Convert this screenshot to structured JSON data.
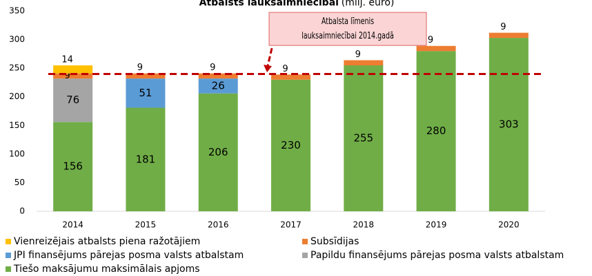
{
  "chart_data": {
    "type": "stacked_bar",
    "title": "Atbalsts lauksaimniecībai",
    "subtitle": "(milj. euro)",
    "categories": [
      "2014",
      "2015",
      "2016",
      "2017",
      "2018",
      "2019",
      "2020"
    ],
    "series": [
      {
        "name": "Tiešo maksājumu maksimālais apjoms",
        "color": "#70ad47",
        "values": [
          156,
          181,
          206,
          230,
          255,
          280,
          303
        ]
      },
      {
        "name": "Papildu finansējums pārejas posma valsts atbalstam",
        "color": "#a5a5a5",
        "values": [
          76,
          null,
          null,
          null,
          null,
          null,
          null
        ]
      },
      {
        "name": "JPI finansējums pārejas posma valsts atbalstam",
        "color": "#5b9bd5",
        "values": [
          null,
          51,
          26,
          null,
          null,
          null,
          null
        ]
      },
      {
        "name": "Subsīdijas",
        "color": "#ed7d31",
        "values": [
          9,
          9,
          9,
          9,
          9,
          9,
          9
        ]
      },
      {
        "name": "Vienreizējais atbalsts piena ražotājiem",
        "color": "#ffc000",
        "values": [
          14,
          null,
          null,
          null,
          null,
          null,
          null
        ]
      }
    ],
    "legend_order": [
      4,
      3,
      2,
      1,
      0
    ],
    "reference_line": {
      "value": 240,
      "color": "#c00000"
    },
    "annotation": "Atbalsta līmenis lauksaimniecībai 2014.gadā",
    "ylim": [
      0,
      350
    ],
    "yticks": [
      0,
      50,
      100,
      150,
      200,
      250,
      300,
      350
    ]
  }
}
